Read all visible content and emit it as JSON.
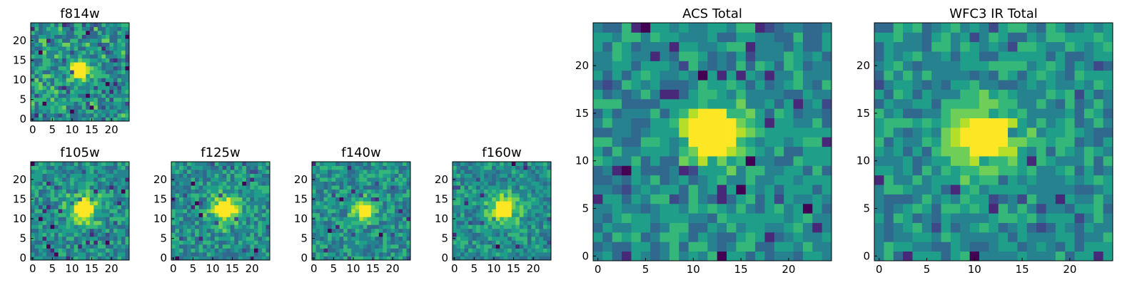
{
  "chart_data": [
    {
      "type": "heatmap",
      "title": "f814w",
      "xlim": [
        0,
        25
      ],
      "ylim": [
        0,
        25
      ],
      "xticks": [
        0,
        5,
        10,
        15,
        20
      ],
      "yticks": [
        0,
        5,
        10,
        15,
        20
      ],
      "colormap": "viridis",
      "source_center": [
        12,
        12.5
      ],
      "source_core_radius": 2.0,
      "source_halo_radius": 4.0,
      "noise": 0.22,
      "seed": 11
    },
    {
      "type": "heatmap",
      "title": "f105w",
      "xlim": [
        0,
        25
      ],
      "ylim": [
        0,
        25
      ],
      "xticks": [
        0,
        5,
        10,
        15,
        20
      ],
      "yticks": [
        0,
        5,
        10,
        15,
        20
      ],
      "colormap": "viridis",
      "source_center": [
        13,
        12.5
      ],
      "source_core_radius": 2.3,
      "source_halo_radius": 6.0,
      "noise": 0.17,
      "seed": 23
    },
    {
      "type": "heatmap",
      "title": "f125w",
      "xlim": [
        0,
        25
      ],
      "ylim": [
        0,
        25
      ],
      "xticks": [
        0,
        5,
        10,
        15,
        20
      ],
      "yticks": [
        0,
        5,
        10,
        15,
        20
      ],
      "colormap": "viridis",
      "source_center": [
        13,
        12.5
      ],
      "source_core_radius": 2.5,
      "source_halo_radius": 6.0,
      "noise": 0.17,
      "seed": 37
    },
    {
      "type": "heatmap",
      "title": "f140w",
      "xlim": [
        0,
        25
      ],
      "ylim": [
        0,
        25
      ],
      "xticks": [
        0,
        5,
        10,
        15,
        20
      ],
      "yticks": [
        0,
        5,
        10,
        15,
        20
      ],
      "colormap": "viridis",
      "source_center": [
        13,
        12
      ],
      "source_core_radius": 1.6,
      "source_halo_radius": 5.0,
      "noise": 0.17,
      "seed": 41
    },
    {
      "type": "heatmap",
      "title": "f160w",
      "xlim": [
        0,
        25
      ],
      "ylim": [
        0,
        25
      ],
      "xticks": [
        0,
        5,
        10,
        15,
        20
      ],
      "yticks": [
        0,
        5,
        10,
        15,
        20
      ],
      "colormap": "viridis",
      "source_center": [
        12.5,
        12.5
      ],
      "source_core_radius": 2.2,
      "source_halo_radius": 6.5,
      "noise": 0.15,
      "seed": 53
    },
    {
      "type": "heatmap",
      "title": "ACS Total",
      "xlim": [
        0,
        25
      ],
      "ylim": [
        0,
        25
      ],
      "xticks": [
        0,
        5,
        10,
        15,
        20
      ],
      "yticks": [
        0,
        5,
        10,
        15,
        20
      ],
      "colormap": "viridis",
      "source_center": [
        12,
        13
      ],
      "source_core_radius": 2.7,
      "source_halo_radius": 5.0,
      "noise": 0.15,
      "seed": 67
    },
    {
      "type": "heatmap",
      "title": "WFC3 IR Total",
      "xlim": [
        0,
        25
      ],
      "ylim": [
        0,
        25
      ],
      "xticks": [
        0,
        5,
        10,
        15,
        20
      ],
      "yticks": [
        0,
        5,
        10,
        15,
        20
      ],
      "colormap": "viridis",
      "source_center": [
        11,
        12.5
      ],
      "source_core_radius": 2.4,
      "source_halo_radius": 6.0,
      "noise": 0.15,
      "seed": 79
    }
  ],
  "colors": {
    "viridis": [
      "#440154",
      "#482878",
      "#3e4989",
      "#31688e",
      "#26828e",
      "#1f9e89",
      "#35b779",
      "#6ece58",
      "#b5de2b",
      "#fde725"
    ],
    "frame": "#000000",
    "background": "#ffffff"
  }
}
